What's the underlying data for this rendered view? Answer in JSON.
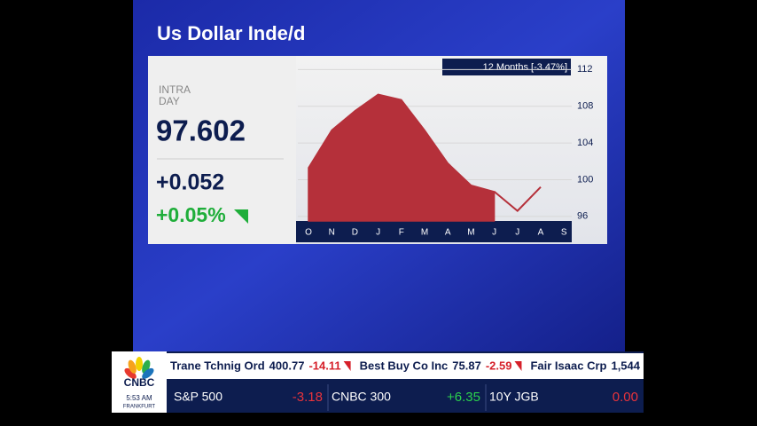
{
  "header": {
    "title": "Us Dollar Inde/d"
  },
  "quote": {
    "label": [
      "INTRA",
      "DAY"
    ],
    "price": "97.602",
    "change": "+0.052",
    "change_pct": "+0.05%"
  },
  "chart_data": {
    "type": "area",
    "badge": "12 Months [-3.47%]",
    "categories": [
      "O",
      "N",
      "D",
      "J",
      "F",
      "M",
      "A",
      "M",
      "J",
      "J",
      "A",
      "S"
    ],
    "series": [
      {
        "color": "#b5303a",
        "fill": true,
        "values": [
          101.3,
          105.4,
          107.5,
          109.3,
          108.7,
          105.4,
          101.8,
          99.4,
          98.7,
          null,
          null,
          null
        ]
      },
      {
        "color": "#b5303a",
        "fill": false,
        "values": [
          null,
          null,
          null,
          null,
          null,
          null,
          null,
          null,
          98.7,
          96.6,
          99.2,
          null
        ]
      }
    ],
    "ylim": [
      95.5,
      113
    ],
    "yticks": [
      96,
      100,
      104,
      108,
      112
    ],
    "grid": true
  },
  "ticker": {
    "top": [
      {
        "name": "Trane Tchnig Ord",
        "price": "400.77",
        "change": "-14.11"
      },
      {
        "name": "Best Buy Co Inc",
        "price": "75.87",
        "change": "-2.59"
      },
      {
        "name": "Fair Isaac Crp",
        "price": "1,544"
      }
    ],
    "bottom": [
      {
        "name": "S&P 500",
        "change": "-3.18"
      },
      {
        "name": "CNBC 300",
        "change": "+6.35"
      },
      {
        "name": "10Y JGB",
        "change": "0.00"
      }
    ],
    "logo": "CNBC",
    "time": "5:53 AM",
    "city": "FRANKFURT"
  }
}
